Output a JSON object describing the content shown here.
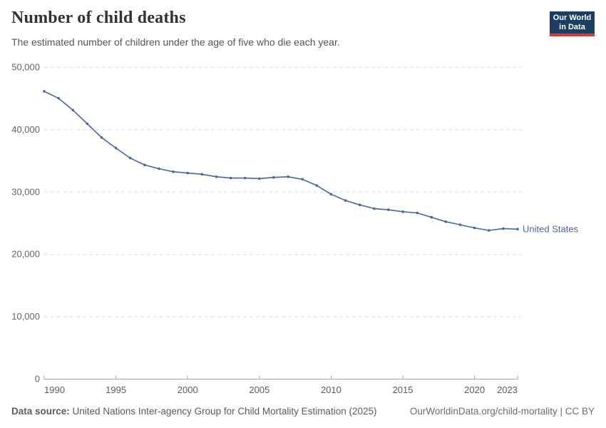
{
  "header": {
    "title": "Number of child deaths",
    "subtitle": "The estimated number of children under the age of five who die each year.",
    "logo": {
      "line1": "Our World",
      "line2": "in Data"
    }
  },
  "colors": {
    "series_blue": "#4A67A3",
    "logo_navy": "#1d3d63",
    "logo_red": "#d73c34",
    "gridline": "#dddddd",
    "axis": "#a5a5a5",
    "y_tick_label": "#666666",
    "x_tick_label": "#5d5d5d"
  },
  "chart_data": {
    "type": "line",
    "title": "Number of child deaths",
    "xlabel": "",
    "ylabel": "",
    "xlim": [
      1990,
      2023
    ],
    "ylim": [
      0,
      50000
    ],
    "x_ticks": [
      1990,
      1995,
      2000,
      2005,
      2010,
      2015,
      2020,
      2023
    ],
    "y_ticks": [
      0,
      10000,
      20000,
      30000,
      40000,
      50000
    ],
    "grid": "horizontal-dashed",
    "legend_position": "end-of-line-label",
    "series": [
      {
        "name": "United States",
        "color": "#4A67A3",
        "x": [
          1990,
          1991,
          1992,
          1993,
          1994,
          1995,
          1996,
          1997,
          1998,
          1999,
          2000,
          2001,
          2002,
          2003,
          2004,
          2005,
          2006,
          2007,
          2008,
          2009,
          2010,
          2011,
          2012,
          2013,
          2014,
          2015,
          2016,
          2017,
          2018,
          2019,
          2020,
          2021,
          2022,
          2023
        ],
        "values": [
          46100,
          45000,
          43100,
          40900,
          38700,
          37000,
          35400,
          34300,
          33700,
          33200,
          33000,
          32800,
          32400,
          32200,
          32200,
          32100,
          32300,
          32400,
          32000,
          31000,
          29600,
          28600,
          27900,
          27300,
          27100,
          26800,
          26600,
          25900,
          25200,
          24700,
          24200,
          23800,
          24100,
          24000
        ]
      }
    ]
  },
  "footer": {
    "source_label": "Data source:",
    "source_text": "United Nations Inter-agency Group for Child Mortality Estimation (2025)",
    "attribution": "OurWorldinData.org/child-mortality | CC BY"
  }
}
